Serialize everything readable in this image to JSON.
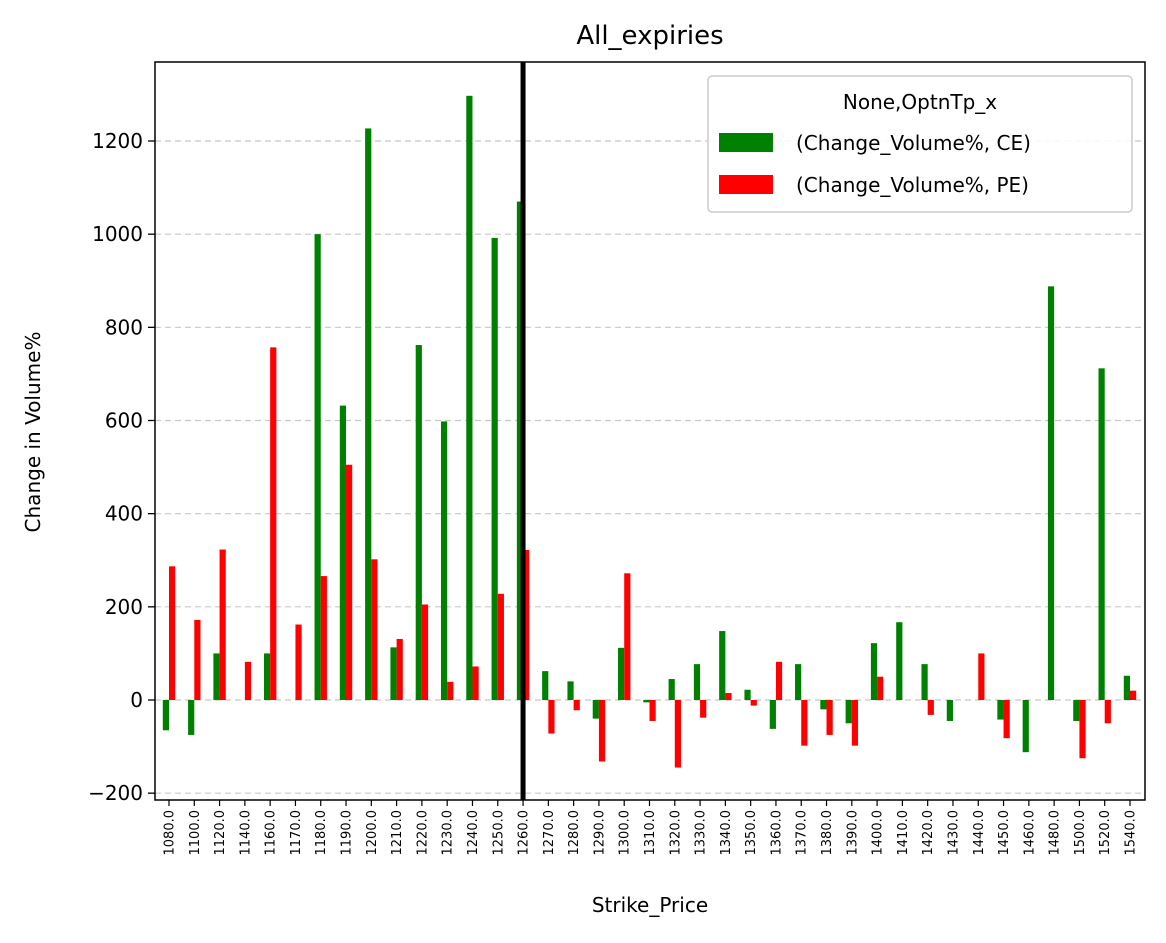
{
  "chart_data": {
    "type": "bar",
    "title": "All_expiries",
    "xlabel": "Strike_Price",
    "ylabel": "Change in Volume%",
    "ylim": [
      -220,
      1370
    ],
    "yticks": [
      -200,
      0,
      200,
      400,
      600,
      800,
      1000,
      1200
    ],
    "ytick_labels": [
      "−200",
      "0",
      "200",
      "400",
      "600",
      "800",
      "1000",
      "1200"
    ],
    "grid": "horizontal dashed",
    "legend_position": "top-right",
    "legend_title": "None,OptnTp_x",
    "categories": [
      "1080.0",
      "1100.0",
      "1120.0",
      "1140.0",
      "1160.0",
      "1170.0",
      "1180.0",
      "1190.0",
      "1200.0",
      "1210.0",
      "1220.0",
      "1230.0",
      "1240.0",
      "1250.0",
      "1260.0",
      "1270.0",
      "1280.0",
      "1290.0",
      "1300.0",
      "1310.0",
      "1320.0",
      "1330.0",
      "1340.0",
      "1350.0",
      "1360.0",
      "1370.0",
      "1380.0",
      "1390.0",
      "1400.0",
      "1410.0",
      "1420.0",
      "1430.0",
      "1440.0",
      "1450.0",
      "1460.0",
      "1480.0",
      "1500.0",
      "1520.0",
      "1540.0"
    ],
    "series": [
      {
        "name": "(Change_Volume%, CE)",
        "color": "#008000",
        "values": [
          -65,
          -75,
          100,
          0,
          100,
          0,
          1000,
          632,
          1227,
          113,
          762,
          598,
          1297,
          992,
          1070,
          62,
          40,
          -40,
          112,
          -5,
          45,
          77,
          148,
          22,
          -62,
          77,
          -20,
          -50,
          122,
          167,
          77,
          -45,
          0,
          -42,
          -112,
          888,
          -45,
          712,
          52
        ]
      },
      {
        "name": "(Change_Volume%, PE)",
        "color": "#ff0000",
        "values": [
          287,
          172,
          323,
          82,
          757,
          162,
          266,
          505,
          302,
          131,
          205,
          39,
          72,
          228,
          322,
          -72,
          -22,
          -132,
          272,
          -45,
          -145,
          -38,
          15,
          -12,
          82,
          -98,
          -75,
          -98,
          50,
          0,
          -32,
          0,
          100,
          -82,
          0,
          0,
          -125,
          -50,
          20
        ]
      }
    ],
    "vertical_marker": "1260.0"
  }
}
